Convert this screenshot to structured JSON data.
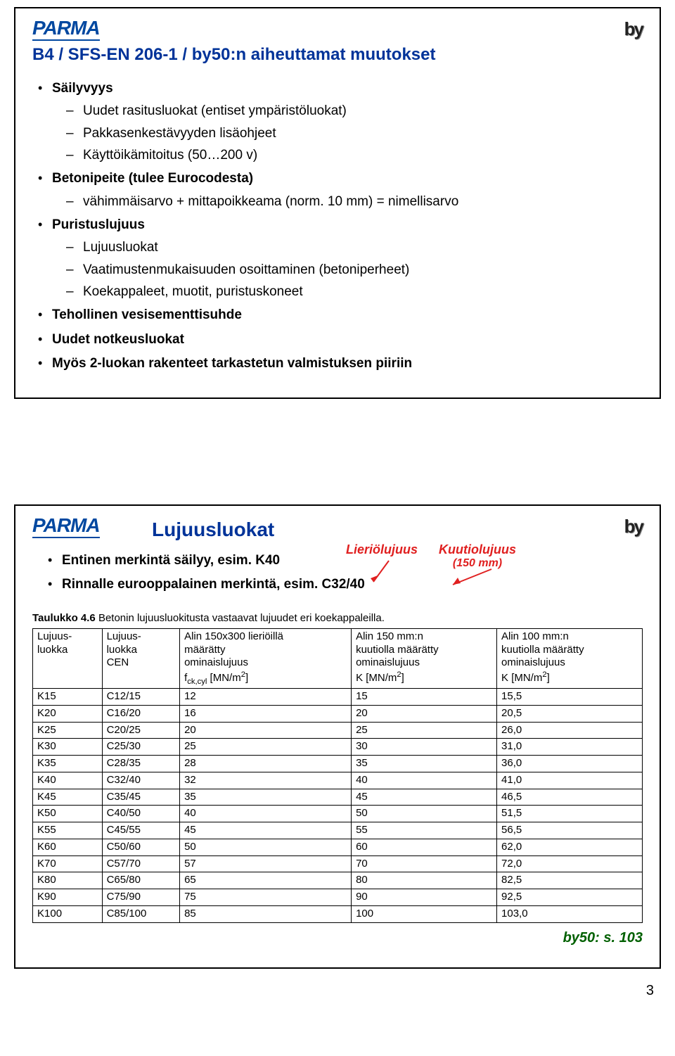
{
  "logos": {
    "parma": "PARMA",
    "by": "by"
  },
  "slide1": {
    "title": "B4 / SFS-EN 206-1 / by50:n aiheuttamat muutokset",
    "items": [
      {
        "label": "Säilyvyys",
        "children": [
          "Uudet rasitusluokat (entiset ympäristöluokat)",
          "Pakkasenkestävyyden lisäohjeet",
          "Käyttöikämitoitus (50…200 v)"
        ]
      },
      {
        "label": "Betonipeite (tulee Eurocodesta)",
        "children": [
          "vähimmäisarvo + mittapoikkeama (norm. 10 mm) = nimellisarvo"
        ]
      },
      {
        "label": "Puristuslujuus",
        "children": [
          "Lujuusluokat",
          "Vaatimustenmukaisuuden osoittaminen (betoniperheet)",
          "Koekappaleet, muotit, puristuskoneet"
        ]
      },
      {
        "label": "Tehollinen vesisementtisuhde"
      },
      {
        "label": "Uudet notkeusluokat"
      },
      {
        "label": "Myös 2-luokan rakenteet tarkastetun valmistuksen piiriin"
      }
    ]
  },
  "slide2": {
    "title": "Lujuusluokat",
    "bullet1": "Entinen merkintä säilyy, esim. K40",
    "bullet2": "Rinnalle eurooppalainen merkintä, esim. C32/40",
    "annot1": "Lieriölujuus",
    "annot2": "Kuutiolujuus",
    "annot2b": "(150 mm)",
    "table_caption_b": "Taulukko 4.6",
    "table_caption": "Betonin lujuusluokitusta vastaavat lujuudet eri koekappaleilla.",
    "columns": [
      "Lujuus-\nluokka",
      "Lujuus-\nluokka\nCEN",
      "Alin 150x300 lieriöillä määrätty ominaislujuus f_ck,cyl [MN/m²]",
      "Alin 150 mm:n kuutiolla määrätty ominaislujuus K [MN/m²]",
      "Alin 100 mm:n kuutiolla määrätty ominaislujuus K [MN/m²]"
    ],
    "rows": [
      [
        "K15",
        "C12/15",
        "12",
        "15",
        "15,5"
      ],
      [
        "K20",
        "C16/20",
        "16",
        "20",
        "20,5"
      ],
      [
        "K25",
        "C20/25",
        "20",
        "25",
        "26,0"
      ],
      [
        "K30",
        "C25/30",
        "25",
        "30",
        "31,0"
      ],
      [
        "K35",
        "C28/35",
        "28",
        "35",
        "36,0"
      ],
      [
        "K40",
        "C32/40",
        "32",
        "40",
        "41,0"
      ],
      [
        "K45",
        "C35/45",
        "35",
        "45",
        "46,5"
      ],
      [
        "K50",
        "C40/50",
        "40",
        "50",
        "51,5"
      ],
      [
        "K55",
        "C45/55",
        "45",
        "55",
        "56,5"
      ],
      [
        "K60",
        "C50/60",
        "50",
        "60",
        "62,0"
      ],
      [
        "K70",
        "C57/70",
        "57",
        "70",
        "72,0"
      ],
      [
        "K80",
        "C65/80",
        "65",
        "80",
        "82,5"
      ],
      [
        "K90",
        "C75/90",
        "75",
        "90",
        "92,5"
      ],
      [
        "K100",
        "C85/100",
        "85",
        "100",
        "103,0"
      ]
    ],
    "footer": "by50: s. 103"
  },
  "page_number": "3",
  "colors": {
    "title_blue": "#003399",
    "annot_red": "#e02020",
    "footer_green": "#006000",
    "parma_blue": "#0048a0"
  }
}
